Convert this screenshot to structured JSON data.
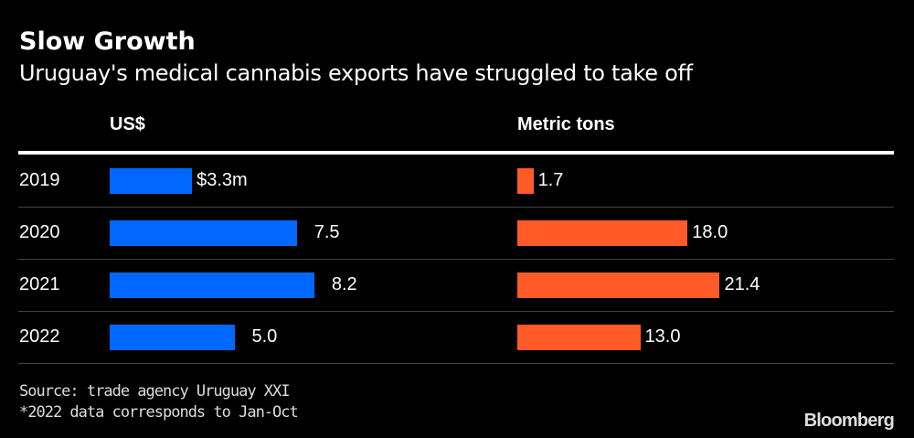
{
  "chart_data": {
    "type": "bar",
    "title": "Slow Growth",
    "subtitle": "Uruguay's medical cannabis exports have struggled to take off",
    "categories": [
      "2019",
      "2020",
      "2021",
      "2022"
    ],
    "series": [
      {
        "name": "US$",
        "unit": "US$ million",
        "values": [
          3.3,
          7.5,
          8.2,
          5.0
        ],
        "labels": [
          "$3.3m",
          "7.5",
          "8.2",
          "5.0"
        ],
        "color": "#0068ff"
      },
      {
        "name": "Metric tons",
        "unit": "metric tons",
        "values": [
          1.7,
          18.0,
          21.4,
          13.0
        ],
        "labels": [
          "1.7",
          "18.0",
          "21.4",
          "13.0"
        ],
        "color": "#ff5a28"
      }
    ],
    "orientation": "horizontal",
    "grid": false,
    "source": "Source: trade agency Uruguay XXI",
    "note": "*2022 data corresponds to Jan-Oct",
    "brand": "Bloomberg"
  }
}
